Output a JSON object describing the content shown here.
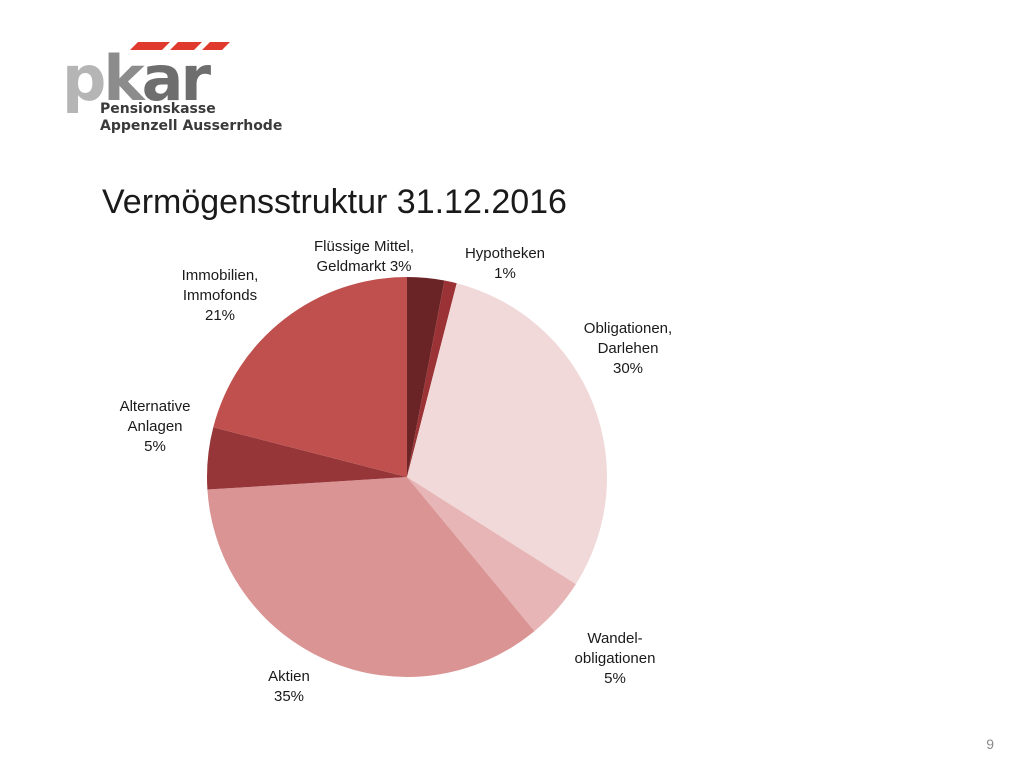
{
  "logo": {
    "wordmark_p": "p",
    "wordmark_k": "k",
    "wordmark_ar": "ar",
    "line1": "Pensionskasse",
    "line2": "Appenzell Ausserrhoden"
  },
  "slide": {
    "title": "Vermögensstruktur 31.12.2016",
    "page_number": "9"
  },
  "chart_data": {
    "type": "pie",
    "title": "Vermögensstruktur 31.12.2016",
    "unit": "%",
    "start_angle_deg": 0,
    "direction": "clockwise",
    "slices": [
      {
        "label_lines": [
          "Flüssige Mittel,",
          "Geldmarkt 3%"
        ],
        "value": 3,
        "color": "#6b2426"
      },
      {
        "label_lines": [
          "Hypotheken",
          "1%"
        ],
        "value": 1,
        "color": "#9b3235"
      },
      {
        "label_lines": [
          "Obligationen,",
          "Darlehen",
          "30%"
        ],
        "value": 30,
        "color": "#f1d9d9"
      },
      {
        "label_lines": [
          "Wandel-",
          "obligationen",
          "5%"
        ],
        "value": 5,
        "color": "#e7b5b5"
      },
      {
        "label_lines": [
          "Aktien",
          "35%"
        ],
        "value": 35,
        "color": "#da9494"
      },
      {
        "label_lines": [
          "Alternative",
          "Anlagen",
          "5%"
        ],
        "value": 5,
        "color": "#963639"
      },
      {
        "label_lines": [
          "Immobilien,",
          "Immofonds",
          "21%"
        ],
        "value": 21,
        "color": "#c0504d"
      }
    ]
  }
}
